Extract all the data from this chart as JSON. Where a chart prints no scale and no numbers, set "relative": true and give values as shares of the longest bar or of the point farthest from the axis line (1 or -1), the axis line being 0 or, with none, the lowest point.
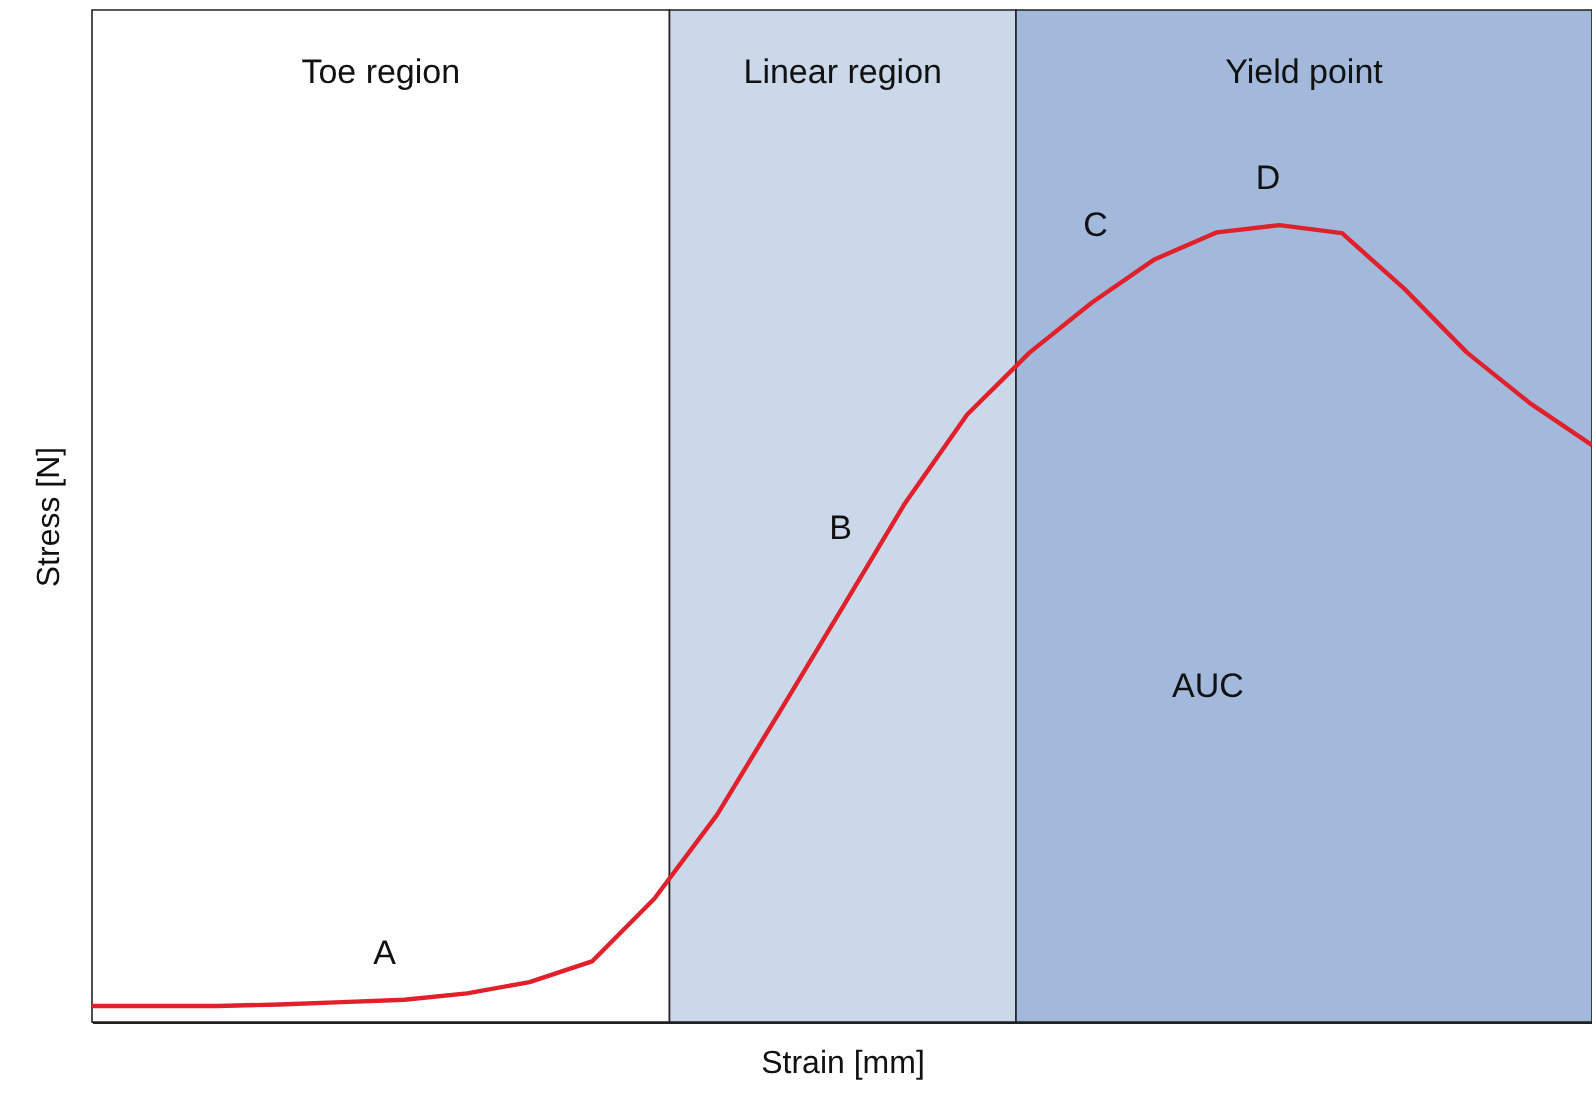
{
  "chart_data": {
    "type": "line",
    "relative": true,
    "xlabel": "Strain [mm]",
    "ylabel": "Stress [N]",
    "categories": [
      null,
      null,
      null,
      null,
      null,
      null,
      null,
      null,
      null,
      null,
      null,
      null,
      null,
      null,
      null,
      null,
      null,
      null,
      null,
      null,
      null,
      null,
      null,
      null,
      null
    ],
    "series": [
      {
        "color": "#e0202a",
        "values": [
          0.02,
          0.02,
          0.02,
          0.022,
          0.025,
          0.028,
          0.036,
          0.05,
          0.076,
          0.155,
          0.26,
          0.389,
          0.519,
          0.65,
          0.762,
          0.84,
          0.903,
          0.957,
          0.991,
          1,
          0.99,
          0.92,
          0.84,
          0.777,
          0.724
        ]
      }
    ],
    "annotations": [
      "Toe region",
      "Linear region",
      "Yield point",
      "A",
      "B",
      "C",
      "D",
      "AUC"
    ],
    "line_style": "solid"
  }
}
